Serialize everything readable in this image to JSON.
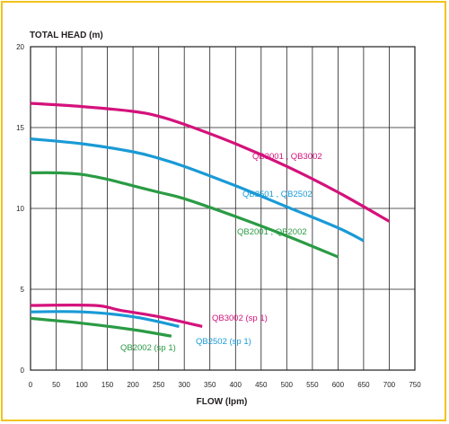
{
  "chart_data": {
    "type": "line",
    "ylabel": "TOTAL HEAD (m)",
    "xlabel": "FLOW (lpm)",
    "xlim": [
      0,
      750
    ],
    "ylim": [
      0,
      20
    ],
    "x_ticks": [
      0,
      50,
      100,
      150,
      200,
      250,
      300,
      350,
      400,
      450,
      500,
      550,
      600,
      650,
      700,
      750
    ],
    "y_ticks": [
      0,
      5,
      10,
      15,
      20
    ],
    "x_grid": true,
    "y_grid": true,
    "series": [
      {
        "name": "QB3001 , QB3002",
        "color": "#d4127b",
        "points": [
          [
            0,
            16.5
          ],
          [
            100,
            16.3
          ],
          [
            200,
            16.0
          ],
          [
            250,
            15.7
          ],
          [
            300,
            15.2
          ],
          [
            400,
            14.0
          ],
          [
            500,
            12.6
          ],
          [
            600,
            11.0
          ],
          [
            700,
            9.2
          ]
        ]
      },
      {
        "name": "QB2501 , QB2502",
        "color": "#1a9ad6",
        "points": [
          [
            0,
            14.3
          ],
          [
            100,
            14.0
          ],
          [
            200,
            13.5
          ],
          [
            250,
            13.1
          ],
          [
            300,
            12.6
          ],
          [
            400,
            11.4
          ],
          [
            500,
            10.1
          ],
          [
            600,
            8.8
          ],
          [
            650,
            8.0
          ]
        ]
      },
      {
        "name": "QB2001 , QB2002",
        "color": "#2a9b44",
        "points": [
          [
            0,
            12.2
          ],
          [
            50,
            12.2
          ],
          [
            100,
            12.1
          ],
          [
            150,
            11.8
          ],
          [
            200,
            11.4
          ],
          [
            250,
            11.0
          ],
          [
            300,
            10.6
          ],
          [
            400,
            9.5
          ],
          [
            500,
            8.3
          ],
          [
            600,
            7.0
          ]
        ]
      },
      {
        "name": "QB3002 (sp 1)",
        "color": "#d4127b",
        "points": [
          [
            0,
            4.0
          ],
          [
            125,
            4.0
          ],
          [
            175,
            3.7
          ],
          [
            250,
            3.3
          ],
          [
            335,
            2.7
          ]
        ]
      },
      {
        "name": "QB2502 (sp 1)",
        "color": "#1a9ad6",
        "points": [
          [
            0,
            3.6
          ],
          [
            100,
            3.6
          ],
          [
            200,
            3.3
          ],
          [
            290,
            2.7
          ]
        ]
      },
      {
        "name": "QB2002 (sp 1)",
        "color": "#2a9b44",
        "points": [
          [
            0,
            3.2
          ],
          [
            100,
            2.9
          ],
          [
            200,
            2.5
          ],
          [
            275,
            2.1
          ]
        ]
      }
    ]
  },
  "colors": {
    "frame_border": "#f2c31c",
    "axis": "#231f20"
  }
}
